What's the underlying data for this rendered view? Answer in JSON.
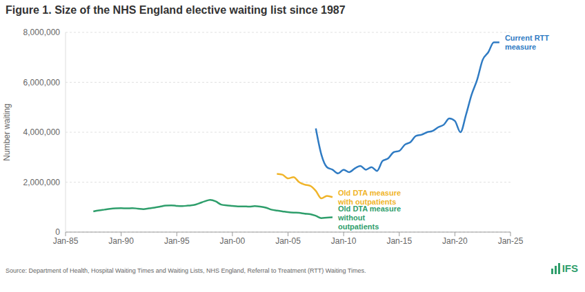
{
  "chart_data": {
    "type": "line",
    "title": "Figure 1. Size of the NHS England elective waiting list since 1987",
    "y_label": "Number waiting",
    "source": "Source: Department of Health, Hospital Waiting Times and Waiting Lists, NHS England, Referral to Treatment (RTT) Waiting Times.",
    "logo": "IFS",
    "grid": true,
    "x": [
      1987.5,
      1988,
      1988.5,
      1989,
      1989.5,
      1990,
      1990.5,
      1991,
      1991.5,
      1992,
      1992.5,
      1993,
      1993.5,
      1994,
      1994.5,
      1995,
      1995.5,
      1996,
      1996.5,
      1997,
      1997.5,
      1998,
      1998.5,
      1999,
      1999.5,
      2000,
      2000.5,
      2001,
      2001.5,
      2002,
      2002.5,
      2003,
      2003.5,
      2004,
      2004.5,
      2005,
      2005.5,
      2006,
      2006.5,
      2007,
      2007.5,
      2008,
      2008.5,
      2009,
      2009.5,
      2010,
      2010.5,
      2011,
      2011.5,
      2012,
      2012.5,
      2013,
      2013.5,
      2014,
      2014.5,
      2015,
      2015.5,
      2016,
      2016.5,
      2017,
      2017.5,
      2018,
      2018.5,
      2019,
      2019.5,
      2020,
      2020.5,
      2021,
      2021.5,
      2022,
      2022.5,
      2023,
      2023.5,
      2024
    ],
    "series": [
      {
        "name": "Current RTT measure",
        "color": "#2f7bc3",
        "values": [
          null,
          null,
          null,
          null,
          null,
          null,
          null,
          null,
          null,
          null,
          null,
          null,
          null,
          null,
          null,
          null,
          null,
          null,
          null,
          null,
          null,
          null,
          null,
          null,
          null,
          null,
          null,
          null,
          null,
          null,
          null,
          null,
          null,
          null,
          null,
          null,
          null,
          null,
          null,
          null,
          4150000,
          3100000,
          2600000,
          2500000,
          2350000,
          2500000,
          2400000,
          2550000,
          2650000,
          2500000,
          2600000,
          2450000,
          2850000,
          2950000,
          3200000,
          3250000,
          3500000,
          3600000,
          3850000,
          3900000,
          4000000,
          4050000,
          4200000,
          4300000,
          4550000,
          4450000,
          4000000,
          4700000,
          5500000,
          6100000,
          6900000,
          7200000,
          7600000,
          7600000
        ]
      },
      {
        "name": "Old DTA measure with outpatients",
        "color": "#f0b429",
        "values": [
          null,
          null,
          null,
          null,
          null,
          null,
          null,
          null,
          null,
          null,
          null,
          null,
          null,
          null,
          null,
          null,
          null,
          null,
          null,
          null,
          null,
          null,
          null,
          null,
          null,
          null,
          null,
          null,
          null,
          null,
          null,
          null,
          null,
          2330000,
          2300000,
          2150000,
          2200000,
          2000000,
          1900000,
          1850000,
          1650000,
          1350000,
          1450000,
          1400000,
          null,
          null,
          null,
          null,
          null,
          null,
          null,
          null,
          null,
          null,
          null,
          null,
          null,
          null,
          null,
          null,
          null,
          null,
          null,
          null,
          null,
          null,
          null,
          null,
          null,
          null,
          null,
          null,
          null,
          null
        ]
      },
      {
        "name": "Old DTA measure without outpatients",
        "color": "#2e9e6b",
        "values": [
          830000,
          870000,
          900000,
          930000,
          950000,
          960000,
          950000,
          960000,
          940000,
          920000,
          950000,
          980000,
          1020000,
          1060000,
          1070000,
          1050000,
          1040000,
          1060000,
          1080000,
          1150000,
          1230000,
          1290000,
          1230000,
          1100000,
          1070000,
          1050000,
          1030000,
          1030000,
          1020000,
          1040000,
          1020000,
          980000,
          900000,
          860000,
          830000,
          800000,
          780000,
          770000,
          740000,
          720000,
          650000,
          560000,
          580000,
          590000,
          null,
          null,
          null,
          null,
          null,
          null,
          null,
          null,
          null,
          null,
          null,
          null,
          null,
          null,
          null,
          null,
          null,
          null,
          null,
          null,
          null,
          null,
          null,
          null,
          null,
          null,
          null,
          null,
          null,
          null
        ]
      }
    ],
    "xlim": [
      1985,
      2025
    ],
    "xticks": [
      {
        "value": 1985,
        "label": "Jan-85"
      },
      {
        "value": 1990,
        "label": "Jan-90"
      },
      {
        "value": 1995,
        "label": "Jan-95"
      },
      {
        "value": 2000,
        "label": "Jan-00"
      },
      {
        "value": 2005,
        "label": "Jan-05"
      },
      {
        "value": 2010,
        "label": "Jan-10"
      },
      {
        "value": 2015,
        "label": "Jan-15"
      },
      {
        "value": 2020,
        "label": "Jan-20"
      },
      {
        "value": 2025,
        "label": "Jan-25"
      }
    ],
    "ylim": [
      0,
      8000000
    ],
    "yticks": [
      0,
      {
        "value": 2000000,
        "label": "2,000,000"
      },
      {
        "value": 4000000,
        "label": "4,000,000"
      },
      {
        "value": 6000000,
        "label": "6,000,000"
      },
      {
        "value": 8000000,
        "label": "8,000,000"
      }
    ]
  }
}
